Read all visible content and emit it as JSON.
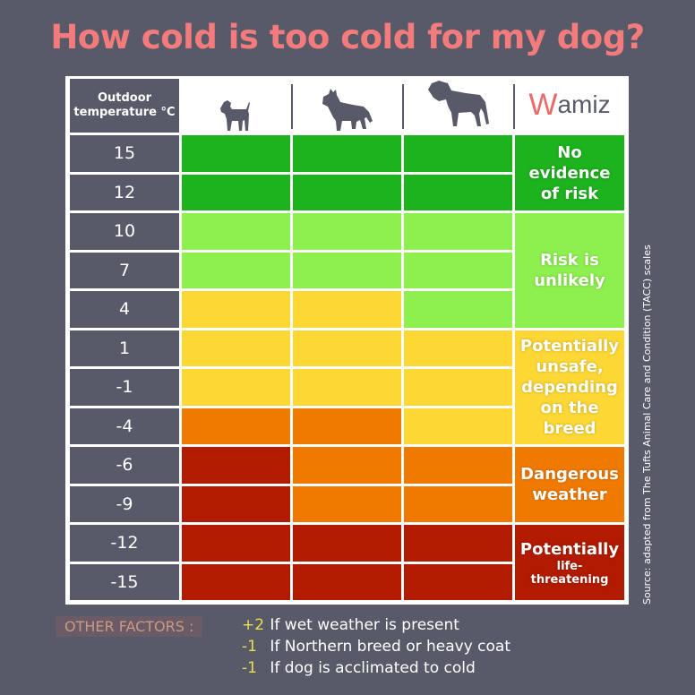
{
  "title": "How cold is too cold for my dog?",
  "header": {
    "temperature_label": "Outdoor temperature °C",
    "dog_icons": [
      "small-dog-icon",
      "medium-dog-icon",
      "large-dog-icon"
    ],
    "logo": {
      "first": "W",
      "rest": "amiz"
    }
  },
  "colors": {
    "background": "#585a6a",
    "title": "#f47b7b",
    "no_risk": "#1db31d",
    "unlikely": "#8ef04f",
    "unsafe": "#fdd835",
    "dangerous": "#f07a00",
    "life_threatening": "#b31b00"
  },
  "chart_data": {
    "type": "heatmap",
    "title": "How cold is too cold for my dog?",
    "row_label": "Outdoor temperature °C",
    "columns": [
      "small dog",
      "medium dog",
      "large dog"
    ],
    "rows": [
      {
        "temp": "15",
        "levels": [
          "no_risk",
          "no_risk",
          "no_risk"
        ]
      },
      {
        "temp": "12",
        "levels": [
          "no_risk",
          "no_risk",
          "no_risk"
        ]
      },
      {
        "temp": "10",
        "levels": [
          "unlikely",
          "unlikely",
          "unlikely"
        ]
      },
      {
        "temp": "7",
        "levels": [
          "unlikely",
          "unlikely",
          "unlikely"
        ]
      },
      {
        "temp": "4",
        "levels": [
          "unsafe",
          "unsafe",
          "unlikely"
        ]
      },
      {
        "temp": "1",
        "levels": [
          "unsafe",
          "unsafe",
          "unsafe"
        ]
      },
      {
        "temp": "-1",
        "levels": [
          "unsafe",
          "unsafe",
          "unsafe"
        ]
      },
      {
        "temp": "-4",
        "levels": [
          "dangerous",
          "dangerous",
          "unsafe"
        ]
      },
      {
        "temp": "-6",
        "levels": [
          "life_threatening",
          "dangerous",
          "dangerous"
        ]
      },
      {
        "temp": "-9",
        "levels": [
          "life_threatening",
          "dangerous",
          "dangerous"
        ]
      },
      {
        "temp": "-12",
        "levels": [
          "life_threatening",
          "life_threatening",
          "life_threatening"
        ]
      },
      {
        "temp": "-15",
        "levels": [
          "life_threatening",
          "life_threatening",
          "life_threatening"
        ]
      }
    ],
    "legend": [
      {
        "key": "no_risk",
        "label": "No evidence of risk",
        "rows": 2
      },
      {
        "key": "unlikely",
        "label": "Risk is unlikely",
        "rows": 3
      },
      {
        "key": "unsafe",
        "label": "Potentially unsafe, depending on the breed",
        "rows": 3
      },
      {
        "key": "dangerous",
        "label": "Dangerous weather",
        "rows": 2
      },
      {
        "key": "life_threatening",
        "label": "Potentially",
        "sublabel": "life-threatening",
        "rows": 2
      }
    ]
  },
  "source": "Source: adapted from The Tufts Animal Care and Condition (TACC) scales",
  "other_factors": {
    "label": "OTHER FACTORS :",
    "items": [
      {
        "value": "+2",
        "text": "If wet weather is present"
      },
      {
        "value": "-1",
        "text": "If Northern breed or heavy coat"
      },
      {
        "value": "-1",
        "text": "If dog is acclimated to cold"
      }
    ]
  }
}
